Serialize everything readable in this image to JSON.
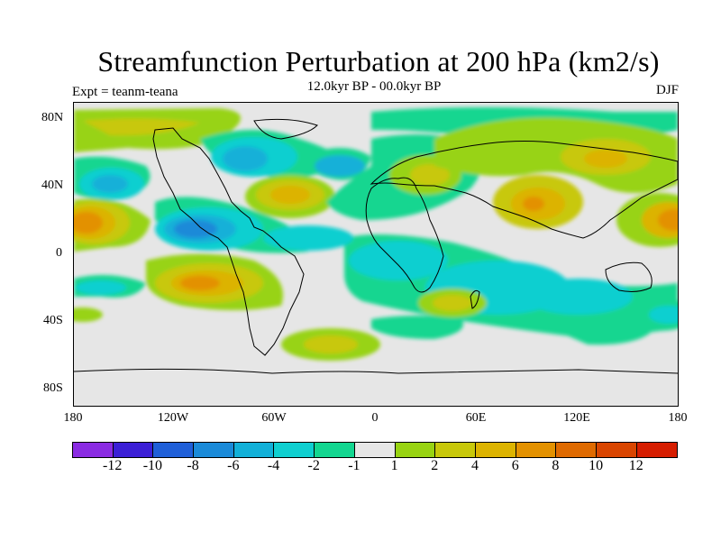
{
  "title": "Streamfunction Perturbation at 200 hPa (km2/s)",
  "subtitle": "12.0kyr BP - 00.0kyr BP",
  "experiment_label": "Expt = teanm-teana",
  "season_label": "DJF",
  "lat_labels": [
    "80N",
    "40N",
    "0",
    "40S",
    "80S"
  ],
  "lon_labels": [
    "180",
    "120W",
    "60W",
    "0",
    "60E",
    "120E",
    "180"
  ],
  "colorbar": {
    "colors": [
      "#8a2be2",
      "#3b1fd6",
      "#1f5fd8",
      "#1a8ad8",
      "#12b0d8",
      "#0fcfd0",
      "#13d690",
      "#e6e6e6",
      "#98d312",
      "#c8c80a",
      "#dcb300",
      "#e39100",
      "#df6a00",
      "#d94500",
      "#d61d00"
    ],
    "labels": [
      "-12",
      "-10",
      "-8",
      "-6",
      "-4",
      "-2",
      "-1",
      "1",
      "2",
      "4",
      "6",
      "8",
      "10",
      "12"
    ]
  }
}
